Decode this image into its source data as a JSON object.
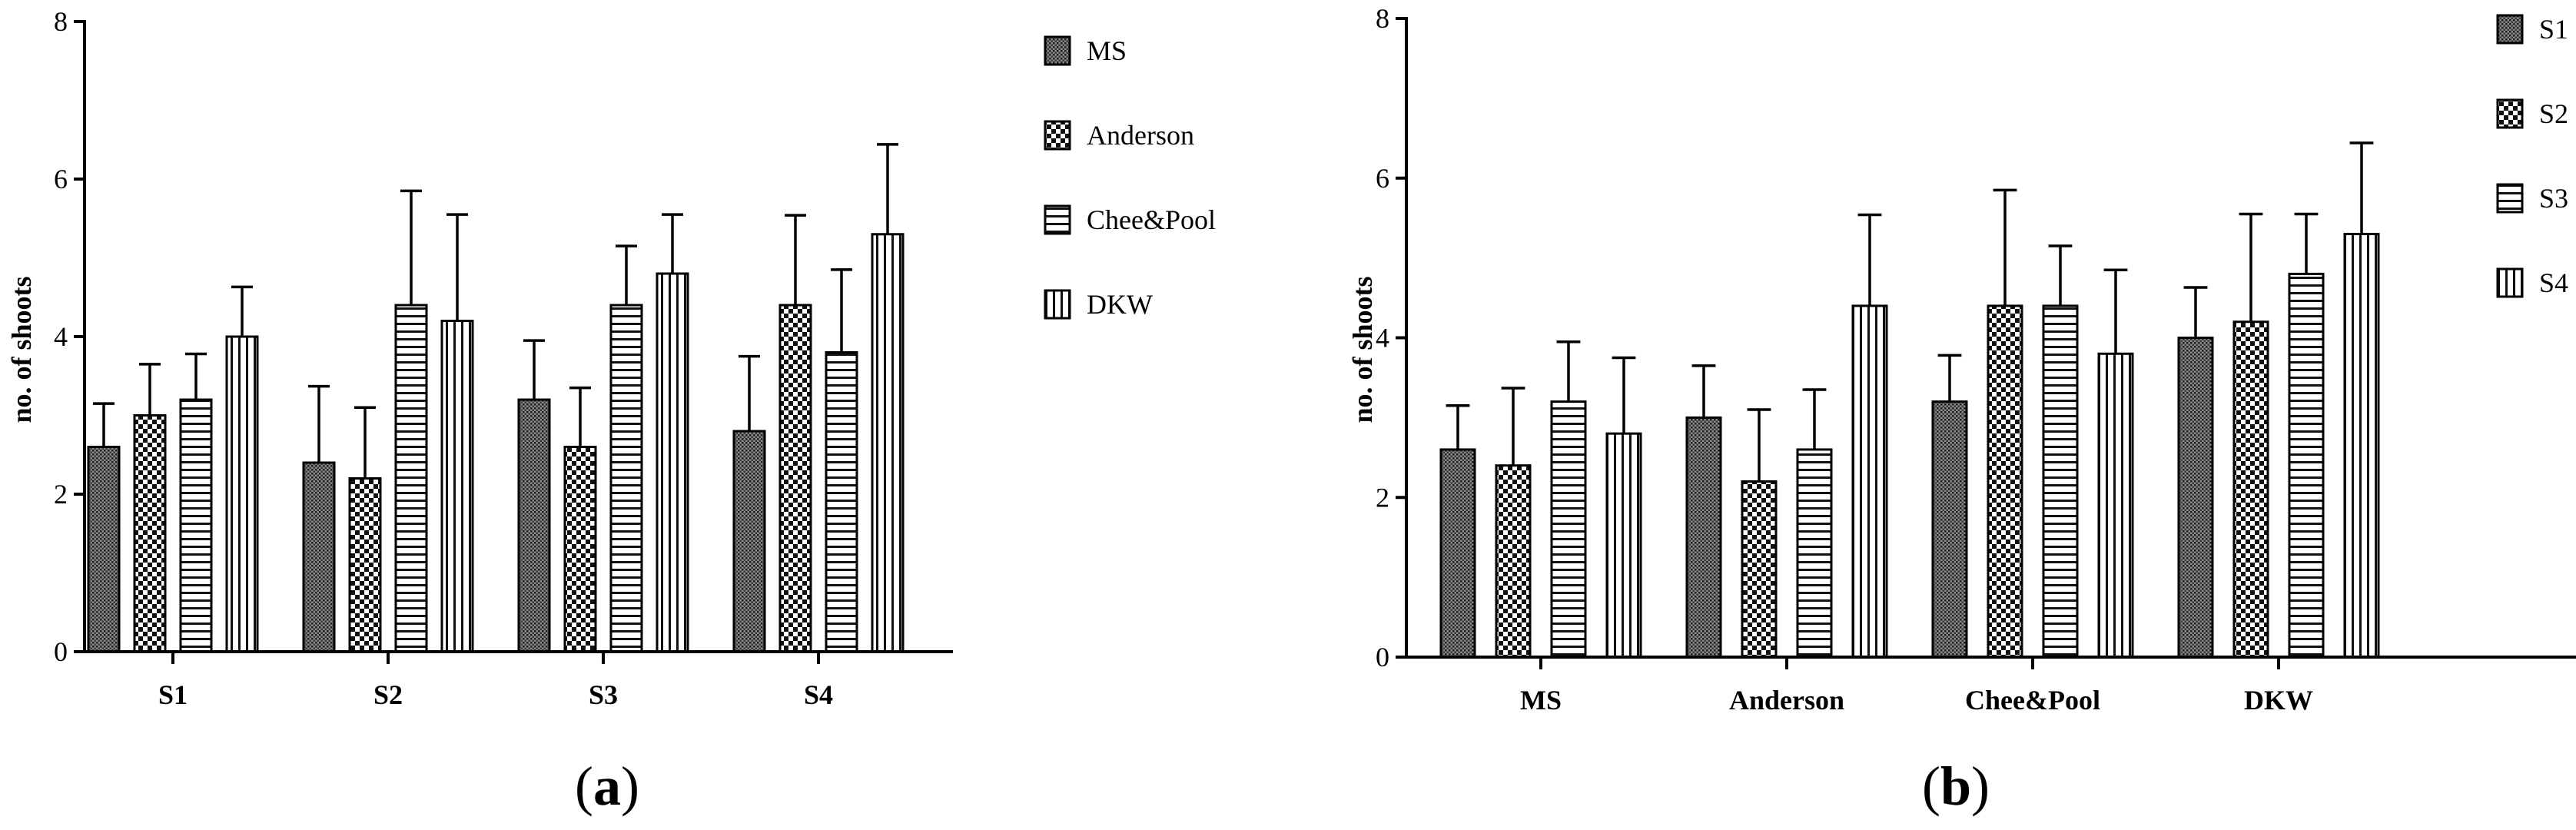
{
  "figure": {
    "panels": [
      "a",
      "b"
    ]
  },
  "chart_data": [
    {
      "panel": "a",
      "type": "bar",
      "ylabel": "no. of shoots",
      "xlabel": "",
      "ylim": [
        0,
        8
      ],
      "yticks": [
        0,
        2,
        4,
        6,
        8
      ],
      "categories": [
        "S1",
        "S2",
        "S3",
        "S4"
      ],
      "legend_position": "right",
      "series": [
        {
          "name": "MS",
          "pattern": "dots",
          "values": [
            2.6,
            2.4,
            3.2,
            2.8
          ],
          "errors": [
            0.55,
            0.97,
            0.75,
            0.95
          ]
        },
        {
          "name": "Anderson",
          "pattern": "checker",
          "values": [
            3.0,
            2.2,
            2.6,
            4.4
          ],
          "errors": [
            0.65,
            0.9,
            0.75,
            1.14
          ]
        },
        {
          "name": "Chee&Pool",
          "pattern": "horizontal",
          "values": [
            3.2,
            4.4,
            4.4,
            3.8
          ],
          "errors": [
            0.58,
            1.45,
            0.75,
            1.05
          ]
        },
        {
          "name": "DKW",
          "pattern": "vertical",
          "values": [
            4.0,
            4.2,
            4.8,
            5.3
          ],
          "errors": [
            0.63,
            1.35,
            0.75,
            1.14
          ]
        }
      ]
    },
    {
      "panel": "b",
      "type": "bar",
      "ylabel": "no. of shoots",
      "xlabel": "",
      "ylim": [
        0,
        8
      ],
      "yticks": [
        0,
        2,
        4,
        6,
        8
      ],
      "categories": [
        "MS",
        "Anderson",
        "Chee&Pool",
        "DKW"
      ],
      "legend_position": "right",
      "series": [
        {
          "name": "S1",
          "pattern": "dots",
          "values": [
            2.6,
            3.0,
            3.2,
            4.0
          ],
          "errors": [
            0.55,
            0.65,
            0.58,
            0.63
          ]
        },
        {
          "name": "S2",
          "pattern": "checker",
          "values": [
            2.4,
            2.2,
            4.4,
            4.2
          ],
          "errors": [
            0.97,
            0.9,
            1.45,
            1.35
          ]
        },
        {
          "name": "S3",
          "pattern": "horizontal",
          "values": [
            3.2,
            2.6,
            4.4,
            4.8
          ],
          "errors": [
            0.75,
            0.75,
            0.75,
            0.75
          ]
        },
        {
          "name": "S4",
          "pattern": "vertical",
          "values": [
            2.8,
            4.4,
            3.8,
            5.3
          ],
          "errors": [
            0.95,
            1.14,
            1.05,
            1.14
          ]
        }
      ]
    }
  ]
}
